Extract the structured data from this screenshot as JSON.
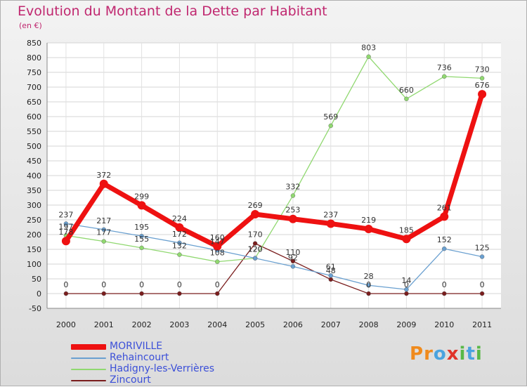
{
  "title": "Evolution du Montant de la Dette par Habitant",
  "subtitle": "(en €)",
  "logo": {
    "letters": [
      "P",
      "r",
      "o",
      "x",
      "i",
      "t",
      "i"
    ],
    "colors": [
      "#f08a1c",
      "#f08a1c",
      "#4aa3df",
      "#e0332a",
      "#58b847",
      "#4aa3df",
      "#58b847"
    ]
  },
  "chart_data": {
    "type": "line",
    "x": [
      "2000",
      "2001",
      "2002",
      "2003",
      "2004",
      "2005",
      "2006",
      "2007",
      "2008",
      "2009",
      "2010",
      "2011"
    ],
    "ylim": [
      -50,
      850
    ],
    "yticks": [
      -50,
      0,
      50,
      100,
      150,
      200,
      250,
      300,
      350,
      400,
      450,
      500,
      550,
      600,
      650,
      700,
      750,
      800,
      850
    ],
    "series": [
      {
        "name": "MORIVILLE",
        "color": "#ee1111",
        "values": [
          178,
          372,
          299,
          224,
          160,
          269,
          253,
          237,
          219,
          185,
          261,
          676
        ]
      },
      {
        "name": "Rehaincourt",
        "color": "#6aa0d0",
        "values": [
          237,
          217,
          195,
          172,
          147,
          120,
          92,
          61,
          28,
          14,
          152,
          125
        ]
      },
      {
        "name": "Hadigny-les-Verrières",
        "color": "#90d870",
        "values": [
          197,
          177,
          155,
          132,
          108,
          120,
          332,
          569,
          803,
          660,
          736,
          730
        ]
      },
      {
        "name": "Zincourt",
        "color": "#7a1d1d",
        "values": [
          0,
          0,
          0,
          0,
          0,
          170,
          110,
          48,
          0,
          0,
          0,
          0
        ]
      }
    ],
    "data_labels": [
      [
        "178",
        "372",
        "299",
        "224",
        "160",
        "269",
        "253",
        "237",
        "219",
        "185",
        "261",
        "676"
      ],
      [
        "237",
        "217",
        "195",
        "172",
        "147",
        "120",
        "92",
        "61",
        "28",
        "14",
        "152",
        "125"
      ],
      [
        "197",
        "177",
        "155",
        "132",
        "108",
        "120",
        "332",
        "569",
        "803",
        "660",
        "736",
        "730"
      ],
      [
        "0",
        "0",
        "0",
        "0",
        "0",
        "170",
        "110",
        "48",
        "0",
        "0",
        "0",
        "0"
      ]
    ]
  }
}
